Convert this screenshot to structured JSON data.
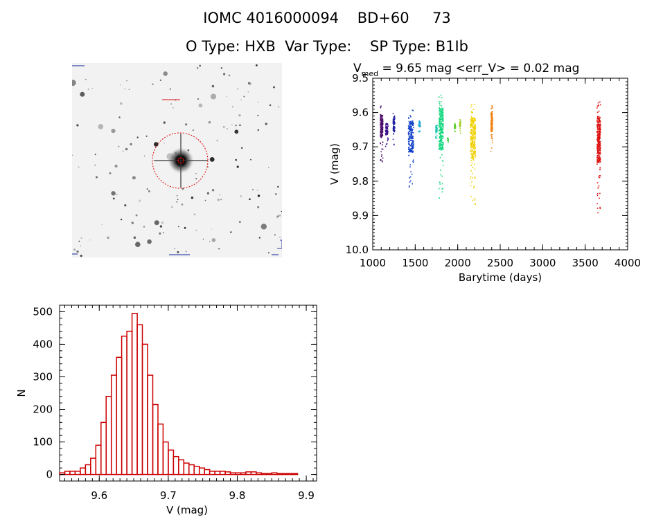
{
  "header": {
    "title_line1": "IOMC 4016000094    BD+60     73",
    "title_line2": "O Type: HXB  Var Type:    SP Type: B1Ib"
  },
  "finder_image": {
    "ellipse_color": "#dd0000"
  },
  "light_curve": {
    "title_prefix": "V",
    "title_sub": "med",
    "title_rest": " = 9.65 mag <err_V> = 0.02 mag",
    "xlabel": "Barytime (days)",
    "ylabel": "V (mag)"
  },
  "histogram": {
    "xlabel": "V (mag)",
    "ylabel": "N"
  },
  "chart_data": [
    {
      "type": "scatter",
      "title": "Vmed = 9.65 mag <err_V> = 0.02 mag",
      "xlabel": "Barytime (days)",
      "ylabel": "V (mag)",
      "xlim": [
        1000,
        4000
      ],
      "ylim": [
        10.0,
        9.5
      ],
      "y_reversed": true,
      "xticks": [
        "1000",
        "1500",
        "2000",
        "2500",
        "3000",
        "3500",
        "4000"
      ],
      "yticks": [
        "9.5",
        "9.6",
        "9.7",
        "9.8",
        "9.9",
        "10.0"
      ],
      "segments": [
        {
          "x_start": 1090,
          "x_end": 1120,
          "y_min": 9.58,
          "y_max": 9.75,
          "color": "#4a0a6a"
        },
        {
          "x_start": 1150,
          "x_end": 1180,
          "y_min": 9.62,
          "y_max": 9.7,
          "color": "#3a108a"
        },
        {
          "x_start": 1240,
          "x_end": 1260,
          "y_min": 9.6,
          "y_max": 9.7,
          "color": "#2020a0"
        },
        {
          "x_start": 1420,
          "x_end": 1480,
          "y_min": 9.59,
          "y_max": 9.82,
          "color": "#1040c8"
        },
        {
          "x_start": 1540,
          "x_end": 1560,
          "y_min": 9.62,
          "y_max": 9.66,
          "color": "#20a8d8"
        },
        {
          "x_start": 1740,
          "x_end": 1760,
          "y_min": 9.63,
          "y_max": 9.68,
          "color": "#20c8b0"
        },
        {
          "x_start": 1780,
          "x_end": 1830,
          "y_min": 9.54,
          "y_max": 9.85,
          "color": "#18d880"
        },
        {
          "x_start": 1880,
          "x_end": 1890,
          "y_min": 9.67,
          "y_max": 9.69,
          "color": "#40d040"
        },
        {
          "x_start": 1960,
          "x_end": 1975,
          "y_min": 9.63,
          "y_max": 9.66,
          "color": "#60d030"
        },
        {
          "x_start": 2020,
          "x_end": 2035,
          "y_min": 9.62,
          "y_max": 9.66,
          "color": "#a0d020"
        },
        {
          "x_start": 2150,
          "x_end": 2210,
          "y_min": 9.57,
          "y_max": 9.87,
          "color": "#f0d000"
        },
        {
          "x_start": 2390,
          "x_end": 2410,
          "y_min": 9.58,
          "y_max": 9.72,
          "color": "#f08010"
        },
        {
          "x_start": 3640,
          "x_end": 3680,
          "y_min": 9.56,
          "y_max": 9.9,
          "color": "#dd1010"
        }
      ]
    },
    {
      "type": "bar",
      "title": "",
      "xlabel": "V (mag)",
      "ylabel": "N",
      "xlim": [
        0.5425,
        0.915
      ],
      "ylim": [
        -20,
        520
      ],
      "bin_width": 0.0075,
      "bin_start": 0.5425,
      "xticks": [
        "9.6",
        "9.7",
        "9.8",
        "9.9"
      ],
      "yticks": [
        "0",
        "100",
        "200",
        "300",
        "400",
        "500"
      ],
      "counts": [
        5,
        10,
        10,
        10,
        20,
        30,
        50,
        90,
        160,
        240,
        305,
        360,
        425,
        440,
        495,
        460,
        400,
        305,
        215,
        155,
        100,
        75,
        55,
        45,
        35,
        30,
        25,
        20,
        15,
        10,
        10,
        10,
        8,
        5,
        5,
        5,
        8,
        8,
        5,
        3,
        3,
        5,
        3,
        3,
        3,
        3
      ],
      "bar_color": "#cc0000"
    }
  ]
}
